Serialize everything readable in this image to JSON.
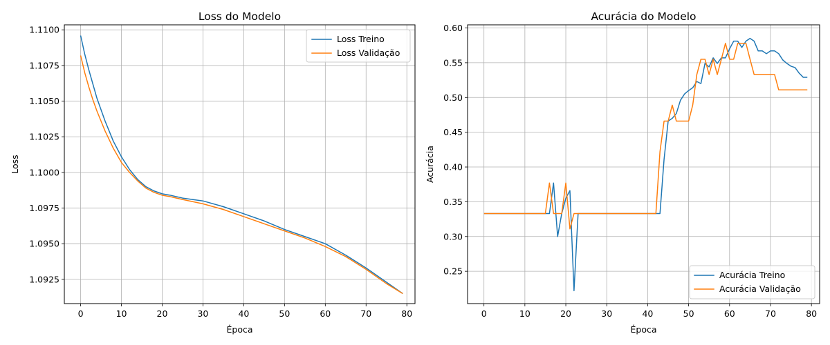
{
  "chart_data": [
    {
      "type": "line",
      "title": "Loss do Modelo",
      "xlabel": "Época",
      "ylabel": "Loss",
      "xlim": [
        -4,
        82
      ],
      "ylim": [
        1.0908,
        1.11035
      ],
      "xticks": [
        0,
        10,
        20,
        30,
        40,
        50,
        60,
        70,
        80
      ],
      "yticks": [
        1.0925,
        1.095,
        1.0975,
        1.1,
        1.1025,
        1.105,
        1.1075,
        1.11
      ],
      "ytick_labels": [
        "1.0925",
        "1.0950",
        "1.0975",
        "1.1000",
        "1.1025",
        "1.1050",
        "1.1075",
        "1.1100"
      ],
      "grid": true,
      "legend_position": "top-right",
      "series": [
        {
          "name": "Loss Treino",
          "color": "#1f77b4",
          "x": [
            0,
            1,
            2,
            3,
            4,
            5,
            6,
            7,
            8,
            10,
            12,
            14,
            16,
            18,
            20,
            22,
            25,
            30,
            35,
            40,
            45,
            50,
            55,
            60,
            65,
            70,
            75,
            79
          ],
          "y": [
            1.1096,
            1.1083,
            1.1072,
            1.1062,
            1.1052,
            1.1044,
            1.1036,
            1.1029,
            1.1022,
            1.1011,
            1.1002,
            1.0995,
            1.099,
            1.0987,
            1.0985,
            1.0984,
            1.0982,
            1.098,
            1.0976,
            1.0971,
            1.0966,
            1.096,
            1.0955,
            1.095,
            1.0942,
            1.0933,
            1.0923,
            1.0915
          ]
        },
        {
          "name": "Loss Validação",
          "color": "#ff7f0e",
          "x": [
            0,
            1,
            2,
            3,
            4,
            5,
            6,
            7,
            8,
            10,
            12,
            14,
            16,
            18,
            20,
            22,
            25,
            30,
            35,
            40,
            45,
            50,
            55,
            60,
            65,
            70,
            75,
            79
          ],
          "y": [
            1.1082,
            1.107,
            1.106,
            1.1051,
            1.1043,
            1.1036,
            1.1029,
            1.1023,
            1.1017,
            1.1007,
            1.1,
            1.0994,
            1.0989,
            1.0986,
            1.0984,
            1.0983,
            1.0981,
            1.0978,
            1.0974,
            1.0969,
            1.0964,
            1.0959,
            1.0954,
            1.0948,
            1.0941,
            1.0932,
            1.0922,
            1.0915
          ]
        }
      ]
    },
    {
      "type": "line",
      "title": "Acurácia do Modelo",
      "xlabel": "Época",
      "ylabel": "Acurácia",
      "xlim": [
        -4,
        82
      ],
      "ylim": [
        0.2035,
        0.6045
      ],
      "xticks": [
        0,
        10,
        20,
        30,
        40,
        50,
        60,
        70,
        80
      ],
      "yticks": [
        0.25,
        0.3,
        0.35,
        0.4,
        0.45,
        0.5,
        0.55,
        0.6
      ],
      "ytick_labels": [
        "0.25",
        "0.30",
        "0.35",
        "0.40",
        "0.45",
        "0.50",
        "0.55",
        "0.60"
      ],
      "grid": true,
      "legend_position": "bottom-right",
      "series": [
        {
          "name": "Acurácia Treino",
          "color": "#1f77b4",
          "x": [
            0,
            15,
            16,
            17,
            18,
            19,
            20,
            21,
            22,
            23,
            43,
            44,
            45,
            46,
            47,
            48,
            49,
            50,
            51,
            52,
            53,
            54,
            55,
            56,
            57,
            58,
            59,
            60,
            61,
            62,
            63,
            64,
            65,
            66,
            67,
            68,
            69,
            70,
            71,
            72,
            73,
            74,
            75,
            76,
            77,
            78,
            79
          ],
          "y": [
            0.333,
            0.333,
            0.333,
            0.377,
            0.3,
            0.333,
            0.355,
            0.366,
            0.222,
            0.333,
            0.333,
            0.411,
            0.466,
            0.47,
            0.477,
            0.496,
            0.505,
            0.51,
            0.514,
            0.523,
            0.52,
            0.549,
            0.544,
            0.557,
            0.549,
            0.557,
            0.557,
            0.57,
            0.581,
            0.581,
            0.572,
            0.581,
            0.585,
            0.581,
            0.567,
            0.567,
            0.563,
            0.567,
            0.567,
            0.563,
            0.554,
            0.549,
            0.545,
            0.543,
            0.535,
            0.529,
            0.529
          ]
        },
        {
          "name": "Acurácia Validação",
          "color": "#ff7f0e",
          "x": [
            0,
            15,
            16,
            17,
            18,
            19,
            20,
            21,
            22,
            42,
            43,
            44,
            45,
            46,
            47,
            50,
            51,
            52,
            53,
            54,
            55,
            56,
            57,
            58,
            59,
            60,
            61,
            62,
            63,
            64,
            65,
            66,
            67,
            71,
            72,
            79
          ],
          "y": [
            0.333,
            0.333,
            0.377,
            0.333,
            0.333,
            0.333,
            0.377,
            0.311,
            0.333,
            0.333,
            0.422,
            0.466,
            0.466,
            0.489,
            0.466,
            0.466,
            0.489,
            0.533,
            0.555,
            0.555,
            0.533,
            0.555,
            0.533,
            0.555,
            0.578,
            0.555,
            0.555,
            0.578,
            0.578,
            0.578,
            0.555,
            0.533,
            0.533,
            0.533,
            0.511,
            0.511
          ]
        }
      ]
    }
  ]
}
